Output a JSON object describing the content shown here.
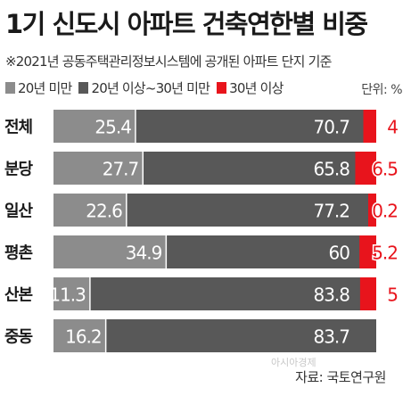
{
  "title": "1기 신도시 아파트 건축연한별 비중",
  "note": "※2021년 공동주택관리정보시스템에 공개된 아파트 단지 기준",
  "unit": "단위: %",
  "source": "자료: 국토연구원",
  "watermark": "아시아경제",
  "colors": {
    "s1": "#8c8c8c",
    "s2": "#585858",
    "s3": "#e8141c"
  },
  "chart_data": {
    "type": "bar",
    "orientation": "horizontal",
    "stacked": true,
    "categories": [
      "전체",
      "분당",
      "일산",
      "평촌",
      "산본",
      "중동"
    ],
    "series": [
      {
        "name": "20년 미만",
        "values": [
          25.4,
          27.7,
          22.6,
          34.9,
          11.3,
          16.2
        ]
      },
      {
        "name": "20년 이상~30년 미만",
        "values": [
          70.7,
          65.8,
          77.2,
          60,
          83.8,
          83.7
        ]
      },
      {
        "name": "30년 이상",
        "values": [
          4,
          6.5,
          0.2,
          5.2,
          5,
          0
        ]
      }
    ],
    "value_labels": [
      [
        "25.4",
        "70.7",
        "4"
      ],
      [
        "27.7",
        "65.8",
        "6.5"
      ],
      [
        "22.6",
        "77.2",
        "0.2"
      ],
      [
        "34.9",
        "60",
        "5.2"
      ],
      [
        "11.3",
        "83.8",
        "5"
      ],
      [
        "16.2",
        "83.7",
        ""
      ]
    ],
    "xlim": [
      0,
      100
    ],
    "legend": "top-left",
    "grid": false
  }
}
